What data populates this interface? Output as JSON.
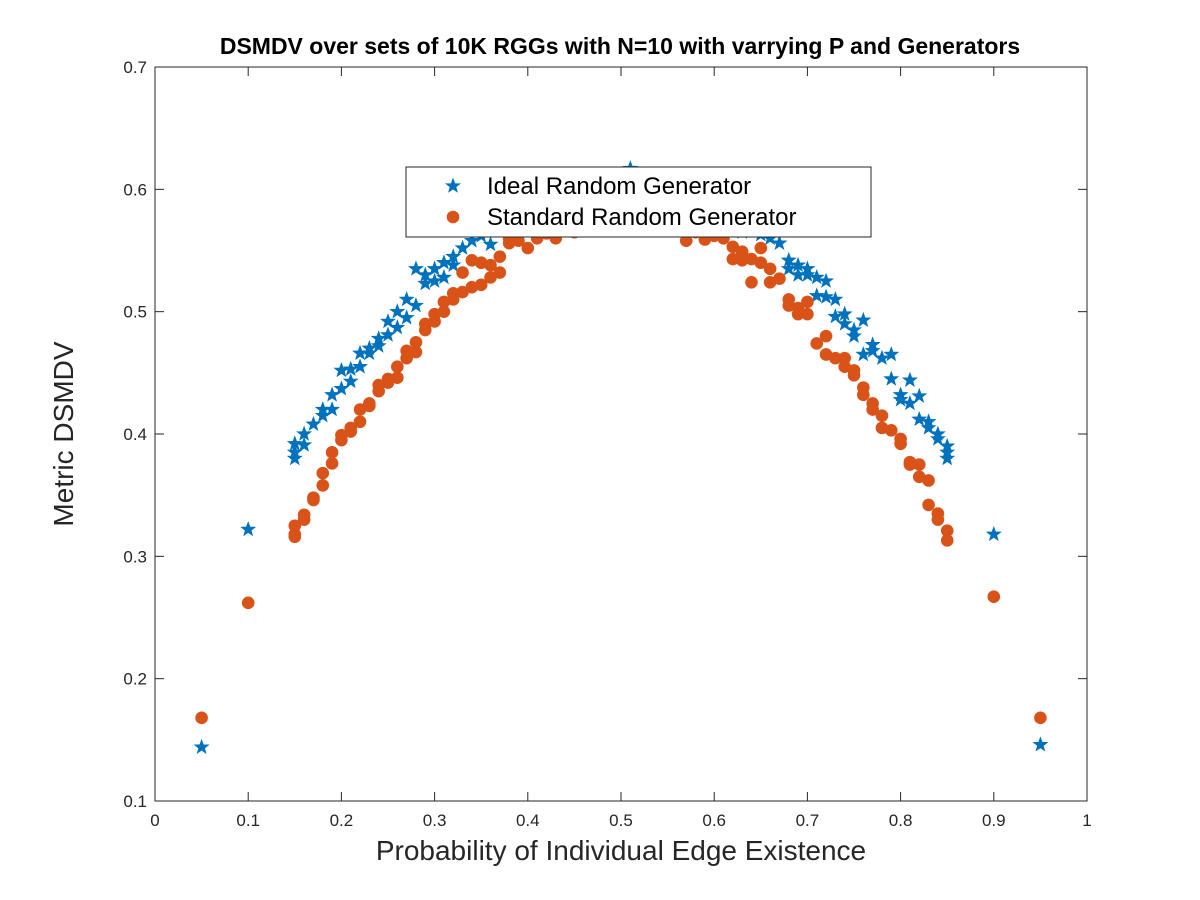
{
  "chart_data": {
    "type": "scatter",
    "title": "DSMDV over sets of 10K RGGs with N=10 with varrying P and Generators",
    "xlabel": "Probability of Individual Edge Existence",
    "ylabel": "Metric DSMDV",
    "xlim": [
      0,
      1
    ],
    "ylim": [
      0.1,
      0.7
    ],
    "xticks": [
      "0",
      "0.1",
      "0.2",
      "0.3",
      "0.4",
      "0.5",
      "0.6",
      "0.7",
      "0.8",
      "0.9",
      "1"
    ],
    "yticks": [
      "0.1",
      "0.2",
      "0.3",
      "0.4",
      "0.5",
      "0.6",
      "0.7"
    ],
    "grid": false,
    "legend_position": "top-center",
    "series": [
      {
        "name": "Ideal Random Generator",
        "marker": "star",
        "color": "#0072BD",
        "points": [
          [
            0.05,
            0.144
          ],
          [
            0.1,
            0.322
          ],
          [
            0.15,
            0.38
          ],
          [
            0.15,
            0.385
          ],
          [
            0.15,
            0.392
          ],
          [
            0.16,
            0.391
          ],
          [
            0.16,
            0.4
          ],
          [
            0.17,
            0.408
          ],
          [
            0.18,
            0.415
          ],
          [
            0.18,
            0.42
          ],
          [
            0.19,
            0.42
          ],
          [
            0.19,
            0.432
          ],
          [
            0.2,
            0.437
          ],
          [
            0.2,
            0.452
          ],
          [
            0.21,
            0.443
          ],
          [
            0.21,
            0.453
          ],
          [
            0.22,
            0.455
          ],
          [
            0.22,
            0.466
          ],
          [
            0.23,
            0.466
          ],
          [
            0.23,
            0.47
          ],
          [
            0.24,
            0.472
          ],
          [
            0.24,
            0.478
          ],
          [
            0.25,
            0.481
          ],
          [
            0.25,
            0.492
          ],
          [
            0.26,
            0.487
          ],
          [
            0.26,
            0.5
          ],
          [
            0.27,
            0.495
          ],
          [
            0.27,
            0.51
          ],
          [
            0.28,
            0.505
          ],
          [
            0.28,
            0.535
          ],
          [
            0.29,
            0.523
          ],
          [
            0.29,
            0.53
          ],
          [
            0.3,
            0.525
          ],
          [
            0.3,
            0.535
          ],
          [
            0.31,
            0.528
          ],
          [
            0.31,
            0.54
          ],
          [
            0.32,
            0.538
          ],
          [
            0.32,
            0.545
          ],
          [
            0.33,
            0.552
          ],
          [
            0.34,
            0.558
          ],
          [
            0.35,
            0.562
          ],
          [
            0.36,
            0.555
          ],
          [
            0.37,
            0.566
          ],
          [
            0.38,
            0.575
          ],
          [
            0.39,
            0.57
          ],
          [
            0.4,
            0.58
          ],
          [
            0.41,
            0.573
          ],
          [
            0.42,
            0.585
          ],
          [
            0.43,
            0.592
          ],
          [
            0.44,
            0.587
          ],
          [
            0.45,
            0.596
          ],
          [
            0.46,
            0.59
          ],
          [
            0.47,
            0.6
          ],
          [
            0.48,
            0.597
          ],
          [
            0.49,
            0.604
          ],
          [
            0.5,
            0.607
          ],
          [
            0.51,
            0.617
          ],
          [
            0.52,
            0.603
          ],
          [
            0.53,
            0.598
          ],
          [
            0.54,
            0.6
          ],
          [
            0.55,
            0.592
          ],
          [
            0.56,
            0.595
          ],
          [
            0.57,
            0.588
          ],
          [
            0.58,
            0.585
          ],
          [
            0.59,
            0.582
          ],
          [
            0.6,
            0.578
          ],
          [
            0.61,
            0.57
          ],
          [
            0.62,
            0.575
          ],
          [
            0.63,
            0.565
          ],
          [
            0.64,
            0.568
          ],
          [
            0.65,
            0.563
          ],
          [
            0.66,
            0.56
          ],
          [
            0.67,
            0.556
          ],
          [
            0.68,
            0.542
          ],
          [
            0.68,
            0.535
          ],
          [
            0.69,
            0.53
          ],
          [
            0.69,
            0.538
          ],
          [
            0.7,
            0.535
          ],
          [
            0.7,
            0.53
          ],
          [
            0.71,
            0.528
          ],
          [
            0.71,
            0.513
          ],
          [
            0.72,
            0.512
          ],
          [
            0.72,
            0.525
          ],
          [
            0.73,
            0.51
          ],
          [
            0.73,
            0.496
          ],
          [
            0.74,
            0.498
          ],
          [
            0.74,
            0.49
          ],
          [
            0.75,
            0.485
          ],
          [
            0.75,
            0.48
          ],
          [
            0.76,
            0.493
          ],
          [
            0.76,
            0.465
          ],
          [
            0.77,
            0.473
          ],
          [
            0.77,
            0.468
          ],
          [
            0.78,
            0.462
          ],
          [
            0.79,
            0.465
          ],
          [
            0.79,
            0.445
          ],
          [
            0.8,
            0.432
          ],
          [
            0.8,
            0.428
          ],
          [
            0.81,
            0.444
          ],
          [
            0.81,
            0.425
          ],
          [
            0.82,
            0.431
          ],
          [
            0.82,
            0.412
          ],
          [
            0.83,
            0.41
          ],
          [
            0.83,
            0.405
          ],
          [
            0.84,
            0.4
          ],
          [
            0.84,
            0.396
          ],
          [
            0.85,
            0.38
          ],
          [
            0.85,
            0.385
          ],
          [
            0.85,
            0.39
          ],
          [
            0.9,
            0.318
          ],
          [
            0.95,
            0.146
          ]
        ]
      },
      {
        "name": "Standard Random Generator",
        "marker": "circle",
        "color": "#D95319",
        "points": [
          [
            0.05,
            0.168
          ],
          [
            0.1,
            0.262
          ],
          [
            0.15,
            0.316
          ],
          [
            0.15,
            0.318
          ],
          [
            0.15,
            0.325
          ],
          [
            0.16,
            0.33
          ],
          [
            0.16,
            0.334
          ],
          [
            0.17,
            0.346
          ],
          [
            0.17,
            0.348
          ],
          [
            0.18,
            0.358
          ],
          [
            0.18,
            0.368
          ],
          [
            0.19,
            0.376
          ],
          [
            0.19,
            0.385
          ],
          [
            0.2,
            0.395
          ],
          [
            0.2,
            0.399
          ],
          [
            0.21,
            0.402
          ],
          [
            0.21,
            0.405
          ],
          [
            0.22,
            0.41
          ],
          [
            0.22,
            0.42
          ],
          [
            0.23,
            0.423
          ],
          [
            0.23,
            0.425
          ],
          [
            0.24,
            0.435
          ],
          [
            0.24,
            0.44
          ],
          [
            0.25,
            0.442
          ],
          [
            0.25,
            0.445
          ],
          [
            0.26,
            0.446
          ],
          [
            0.26,
            0.455
          ],
          [
            0.27,
            0.462
          ],
          [
            0.27,
            0.468
          ],
          [
            0.28,
            0.467
          ],
          [
            0.28,
            0.475
          ],
          [
            0.29,
            0.485
          ],
          [
            0.29,
            0.49
          ],
          [
            0.3,
            0.492
          ],
          [
            0.3,
            0.498
          ],
          [
            0.31,
            0.5
          ],
          [
            0.31,
            0.508
          ],
          [
            0.32,
            0.51
          ],
          [
            0.32,
            0.515
          ],
          [
            0.33,
            0.516
          ],
          [
            0.33,
            0.532
          ],
          [
            0.34,
            0.52
          ],
          [
            0.34,
            0.542
          ],
          [
            0.35,
            0.522
          ],
          [
            0.35,
            0.54
          ],
          [
            0.36,
            0.528
          ],
          [
            0.36,
            0.538
          ],
          [
            0.37,
            0.532
          ],
          [
            0.37,
            0.545
          ],
          [
            0.38,
            0.556
          ],
          [
            0.38,
            0.56
          ],
          [
            0.39,
            0.558
          ],
          [
            0.4,
            0.552
          ],
          [
            0.41,
            0.56
          ],
          [
            0.42,
            0.564
          ],
          [
            0.43,
            0.56
          ],
          [
            0.44,
            0.566
          ],
          [
            0.45,
            0.565
          ],
          [
            0.46,
            0.568
          ],
          [
            0.47,
            0.57
          ],
          [
            0.48,
            0.568
          ],
          [
            0.49,
            0.57
          ],
          [
            0.5,
            0.572
          ],
          [
            0.51,
            0.57
          ],
          [
            0.52,
            0.572
          ],
          [
            0.53,
            0.569
          ],
          [
            0.54,
            0.568
          ],
          [
            0.55,
            0.566
          ],
          [
            0.56,
            0.568
          ],
          [
            0.57,
            0.558
          ],
          [
            0.58,
            0.565
          ],
          [
            0.59,
            0.559
          ],
          [
            0.6,
            0.562
          ],
          [
            0.61,
            0.56
          ],
          [
            0.62,
            0.553
          ],
          [
            0.62,
            0.543
          ],
          [
            0.63,
            0.549
          ],
          [
            0.63,
            0.542
          ],
          [
            0.64,
            0.524
          ],
          [
            0.64,
            0.543
          ],
          [
            0.65,
            0.552
          ],
          [
            0.65,
            0.54
          ],
          [
            0.66,
            0.524
          ],
          [
            0.66,
            0.535
          ],
          [
            0.67,
            0.527
          ],
          [
            0.68,
            0.51
          ],
          [
            0.68,
            0.505
          ],
          [
            0.69,
            0.498
          ],
          [
            0.69,
            0.503
          ],
          [
            0.7,
            0.498
          ],
          [
            0.7,
            0.508
          ],
          [
            0.71,
            0.474
          ],
          [
            0.72,
            0.48
          ],
          [
            0.72,
            0.465
          ],
          [
            0.73,
            0.462
          ],
          [
            0.74,
            0.462
          ],
          [
            0.74,
            0.455
          ],
          [
            0.75,
            0.448
          ],
          [
            0.75,
            0.452
          ],
          [
            0.76,
            0.438
          ],
          [
            0.76,
            0.432
          ],
          [
            0.77,
            0.425
          ],
          [
            0.77,
            0.42
          ],
          [
            0.78,
            0.415
          ],
          [
            0.78,
            0.405
          ],
          [
            0.79,
            0.403
          ],
          [
            0.8,
            0.392
          ],
          [
            0.8,
            0.396
          ],
          [
            0.81,
            0.377
          ],
          [
            0.81,
            0.375
          ],
          [
            0.82,
            0.365
          ],
          [
            0.82,
            0.375
          ],
          [
            0.83,
            0.362
          ],
          [
            0.83,
            0.342
          ],
          [
            0.84,
            0.335
          ],
          [
            0.84,
            0.33
          ],
          [
            0.85,
            0.321
          ],
          [
            0.85,
            0.313
          ],
          [
            0.9,
            0.267
          ],
          [
            0.95,
            0.168
          ]
        ]
      }
    ]
  }
}
